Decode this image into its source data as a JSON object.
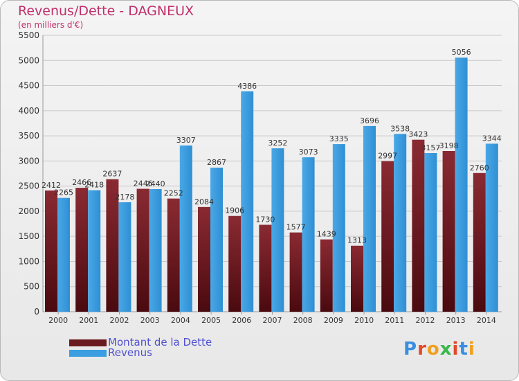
{
  "chart_data": {
    "type": "bar",
    "title": "Revenus/Dette - DAGNEUX",
    "subtitle": "(en milliers d'€)",
    "categories": [
      "2000",
      "2001",
      "2002",
      "2003",
      "2004",
      "2005",
      "2006",
      "2007",
      "2008",
      "2009",
      "2010",
      "2011",
      "2012",
      "2013",
      "2014"
    ],
    "series": [
      {
        "name": "Montant de la Dette",
        "color": "#7a1c24",
        "values": [
          2412,
          2466,
          2637,
          2446,
          2252,
          2084,
          1906,
          1730,
          1577,
          1439,
          1313,
          2997,
          3423,
          3198,
          2760
        ]
      },
      {
        "name": "Revenus",
        "color": "#3a9ee0",
        "values": [
          2265,
          2418,
          2178,
          2440,
          3307,
          2867,
          4386,
          3252,
          3073,
          3335,
          3696,
          3538,
          3157,
          5056,
          3344
        ]
      }
    ],
    "yticks": [
      0,
      500,
      1000,
      1500,
      2000,
      2500,
      3000,
      3500,
      4000,
      4500,
      5000,
      5500
    ],
    "ylim": [
      0,
      5500
    ],
    "grid": true,
    "legend_position": "bottom-left"
  },
  "logo_text": "Proxiti"
}
